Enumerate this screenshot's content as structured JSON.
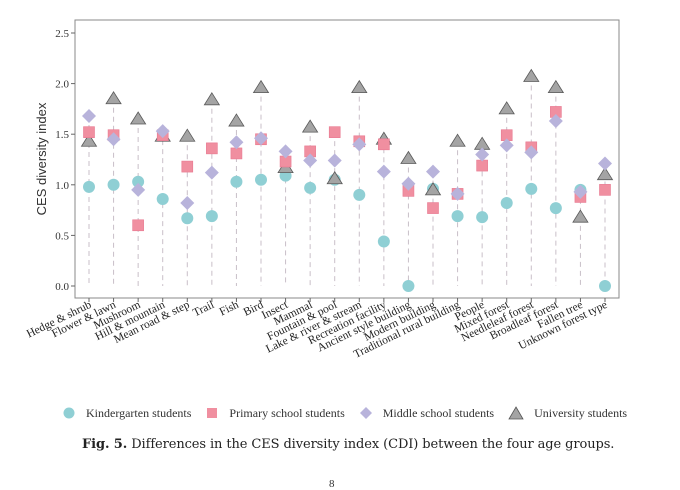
{
  "chart_data": {
    "type": "scatter",
    "subtype": "dot-plot-with-dropline",
    "title": "",
    "xlabel": "",
    "ylabel": "CES diversity index",
    "ylim": [
      -0.05,
      2.6
    ],
    "yticks": [
      0.0,
      0.5,
      1.0,
      1.5,
      2.0,
      2.5
    ],
    "ytick_labels": [
      "0.0",
      "0.5",
      "1.0",
      "1.5",
      "2.0",
      "2.5"
    ],
    "grid": false,
    "legend_position": "bottom",
    "categories": [
      "Hedge & shrub",
      "Flower & lawn",
      "Mushroom",
      "Hill & mountain",
      "Mean road & step",
      "Trail",
      "Fish",
      "Bird",
      "Insect",
      "Mammal",
      "Fountain & pool",
      "Lake & river & stream",
      "Recreation facility",
      "Ancient style building",
      "Modern building",
      "Traditional rural building",
      "People",
      "Mixed forest",
      "Needleleaf forest",
      "Broadleaf forest",
      "Fallen tree",
      "Unknown forest type"
    ],
    "series": [
      {
        "name": "Kindergarten students",
        "marker": "circle",
        "color": "#8fcfd4",
        "values": [
          0.98,
          1.0,
          1.03,
          0.86,
          0.67,
          0.69,
          1.03,
          1.05,
          1.09,
          0.97,
          1.05,
          0.9,
          0.44,
          0.0,
          0.96,
          0.69,
          0.68,
          0.82,
          0.96,
          0.77,
          0.95,
          0.0
        ]
      },
      {
        "name": "Primary school students",
        "marker": "square",
        "color": "#f08fa0",
        "values": [
          1.52,
          1.49,
          0.6,
          1.49,
          1.18,
          1.36,
          1.31,
          1.45,
          1.23,
          1.33,
          1.52,
          1.43,
          1.4,
          0.94,
          0.77,
          0.91,
          1.19,
          1.49,
          1.37,
          1.72,
          0.88,
          0.95
        ]
      },
      {
        "name": "Middle school students",
        "marker": "diamond",
        "color": "#b8b3db",
        "values": [
          1.68,
          1.45,
          0.95,
          1.53,
          0.82,
          1.12,
          1.42,
          1.46,
          1.33,
          1.24,
          1.24,
          1.4,
          1.13,
          1.01,
          1.13,
          0.91,
          1.3,
          1.39,
          1.32,
          1.63,
          0.93,
          1.21
        ]
      },
      {
        "name": "University students",
        "marker": "triangle",
        "color": "#8e8e8e",
        "values": [
          1.43,
          1.85,
          1.65,
          1.48,
          1.48,
          1.84,
          1.63,
          1.96,
          1.17,
          1.57,
          1.06,
          1.96,
          1.45,
          1.26,
          0.95,
          1.43,
          1.4,
          1.75,
          2.07,
          1.96,
          0.68,
          1.1
        ]
      }
    ]
  },
  "legend": {
    "items": [
      {
        "label": "Kindergarten students"
      },
      {
        "label": "Primary school students"
      },
      {
        "label": "Middle school students"
      },
      {
        "label": "University students"
      }
    ]
  },
  "caption": {
    "prefix": "Fig. 5.",
    "text": "Differences in the CES diversity index (CDI) between the four age groups."
  },
  "page_number": "8"
}
